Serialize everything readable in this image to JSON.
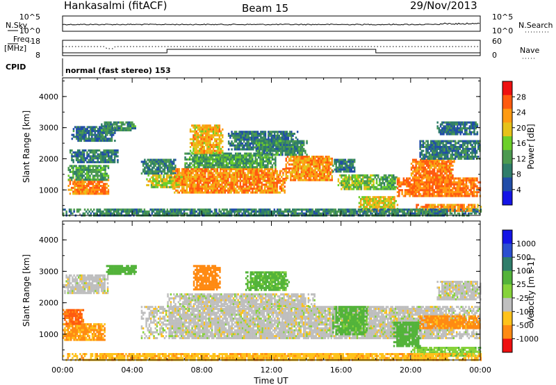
{
  "header": {
    "station": "Hankasalmi (fitACF)",
    "beam": "Beam 15",
    "date": "29/Nov/2013"
  },
  "side_panels": {
    "nsky_label": "N.Sky",
    "nsky_ticks": [
      "10^5",
      "10^0"
    ],
    "nsearch_label": "N.Search",
    "nsearch_ticks": [
      "10^5",
      "10^0"
    ],
    "freq_label_1": "Freq.",
    "freq_label_2": "[MHz]",
    "freq_ticks": [
      "18",
      "8"
    ],
    "nave_label": "Nave",
    "nave_ticks": [
      "60",
      "0"
    ],
    "cpid_label": "CPID",
    "cpid_text": "normal (fast stereo) 153"
  },
  "colors": {
    "power_scale": [
      "#1414e6",
      "#214da8",
      "#2f7d6a",
      "#4c9a50",
      "#6ccf2a",
      "#e6c21a",
      "#ff9a12",
      "#ff5a0f",
      "#ee1010"
    ],
    "velocity_scale": [
      "#1414e6",
      "#2b4fd0",
      "#2f7d6a",
      "#53b33a",
      "#86d33a",
      "#bdbdbd",
      "#ffc21a",
      "#ff8a12",
      "#ff5a0f",
      "#ee1010"
    ],
    "ground_scatter": "#bfbfbf"
  },
  "chart_data": [
    {
      "type": "heatmap",
      "panel": "power",
      "ylabel": "Slant Range [km]",
      "ylim": [
        180,
        4600
      ],
      "yticks": [
        "1000",
        "2000",
        "3000",
        "4000"
      ],
      "xlim_hours": [
        0,
        24
      ],
      "colorbar_label": "Power [dB]",
      "colorbar_ticks": [
        "4",
        "8",
        "12",
        "16",
        "20",
        "24",
        "28"
      ],
      "echo_regions": [
        {
          "t0": 0.3,
          "t1": 2.6,
          "r0": 850,
          "r1": 1350,
          "v": 28
        },
        {
          "t0": 0.3,
          "t1": 2.6,
          "r0": 1350,
          "r1": 1800,
          "v": 14
        },
        {
          "t0": 0.4,
          "t1": 3.2,
          "r0": 1900,
          "r1": 2300,
          "v": 10
        },
        {
          "t0": 0.5,
          "t1": 3.0,
          "r0": 2600,
          "r1": 3050,
          "v": 9
        },
        {
          "t0": 2.2,
          "t1": 4.2,
          "r0": 2900,
          "r1": 3200,
          "v": 12
        },
        {
          "t0": 4.8,
          "t1": 7.2,
          "r0": 1100,
          "r1": 1500,
          "v": 20
        },
        {
          "t0": 4.5,
          "t1": 6.5,
          "r0": 1500,
          "r1": 2000,
          "v": 10
        },
        {
          "t0": 6.3,
          "t1": 12.8,
          "r0": 900,
          "r1": 1700,
          "v": 27
        },
        {
          "t0": 7.0,
          "t1": 12.2,
          "r0": 1700,
          "r1": 2200,
          "v": 14
        },
        {
          "t0": 7.3,
          "t1": 9.2,
          "r0": 2200,
          "r1": 3100,
          "v": 24
        },
        {
          "t0": 9.5,
          "t1": 13.5,
          "r0": 2300,
          "r1": 2900,
          "v": 10
        },
        {
          "t0": 12.8,
          "t1": 15.5,
          "r0": 1300,
          "r1": 2100,
          "v": 26
        },
        {
          "t0": 11.0,
          "t1": 14.0,
          "r0": 2100,
          "r1": 2600,
          "v": 12
        },
        {
          "t0": 15.8,
          "t1": 18.0,
          "r0": 1000,
          "r1": 1500,
          "v": 18
        },
        {
          "t0": 15.5,
          "t1": 16.8,
          "r0": 1600,
          "r1": 2000,
          "v": 10
        },
        {
          "t0": 17.0,
          "t1": 19.2,
          "r0": 350,
          "r1": 800,
          "v": 22
        },
        {
          "t0": 18.0,
          "t1": 19.2,
          "r0": 1000,
          "r1": 1500,
          "v": 14
        },
        {
          "t0": 19.2,
          "t1": 24.0,
          "r0": 800,
          "r1": 1400,
          "v": 29
        },
        {
          "t0": 20.0,
          "t1": 22.5,
          "r0": 1400,
          "r1": 2000,
          "v": 28
        },
        {
          "t0": 20.5,
          "t1": 24.0,
          "r0": 2000,
          "r1": 2600,
          "v": 10
        },
        {
          "t0": 20.3,
          "t1": 24.0,
          "r0": 350,
          "r1": 550,
          "v": 26
        },
        {
          "t0": 21.5,
          "t1": 23.8,
          "r0": 2800,
          "r1": 3200,
          "v": 9
        },
        {
          "t0": 0.0,
          "t1": 24.0,
          "r0": 180,
          "r1": 400,
          "v": 11
        }
      ]
    },
    {
      "type": "heatmap",
      "panel": "velocity",
      "ylabel": "Slant Range [km]",
      "ylim": [
        180,
        4600
      ],
      "yticks": [
        "1000",
        "2000",
        "3000",
        "4000"
      ],
      "xlim_hours": [
        0,
        24
      ],
      "xticks": [
        "00:00",
        "04:00",
        "08:00",
        "12:00",
        "16:00",
        "20:00",
        "00:00"
      ],
      "xlabel": "Time UT",
      "colorbar_label": "Velocity [m s-1]",
      "colorbar_ticks": [
        "1000",
        "500",
        "100",
        "25",
        "-25",
        "-100",
        "-500",
        "-1000"
      ],
      "echo_regions": [
        {
          "t0": 0.0,
          "t1": 2.6,
          "r0": 2300,
          "r1": 2900,
          "v": 0
        },
        {
          "t0": 0.0,
          "t1": 2.4,
          "r0": 800,
          "r1": 1350,
          "v": -120
        },
        {
          "t0": 0.0,
          "t1": 1.2,
          "r0": 1350,
          "r1": 1800,
          "v": -600
        },
        {
          "t0": 2.5,
          "t1": 4.2,
          "r0": 2900,
          "r1": 3200,
          "v": 200
        },
        {
          "t0": 4.5,
          "t1": 24.0,
          "r0": 900,
          "r1": 1900,
          "v": 0
        },
        {
          "t0": 6.0,
          "t1": 14.5,
          "r0": 1900,
          "r1": 2300,
          "v": 0
        },
        {
          "t0": 7.5,
          "t1": 9.0,
          "r0": 2400,
          "r1": 3200,
          "v": -300
        },
        {
          "t0": 10.5,
          "t1": 13.0,
          "r0": 2400,
          "r1": 3000,
          "v": 150
        },
        {
          "t0": 15.5,
          "t1": 17.5,
          "r0": 1000,
          "r1": 1900,
          "v": 150
        },
        {
          "t0": 19.0,
          "t1": 20.5,
          "r0": 600,
          "r1": 1400,
          "v": 200
        },
        {
          "t0": 20.5,
          "t1": 24.0,
          "r0": 1200,
          "r1": 1600,
          "v": -150
        },
        {
          "t0": 21.5,
          "t1": 24.0,
          "r0": 2100,
          "r1": 2700,
          "v": 0
        },
        {
          "t0": 20.0,
          "t1": 24.0,
          "r0": 350,
          "r1": 600,
          "v": 80
        },
        {
          "t0": 0.0,
          "t1": 24.0,
          "r0": 180,
          "r1": 400,
          "v": -80
        }
      ]
    }
  ]
}
